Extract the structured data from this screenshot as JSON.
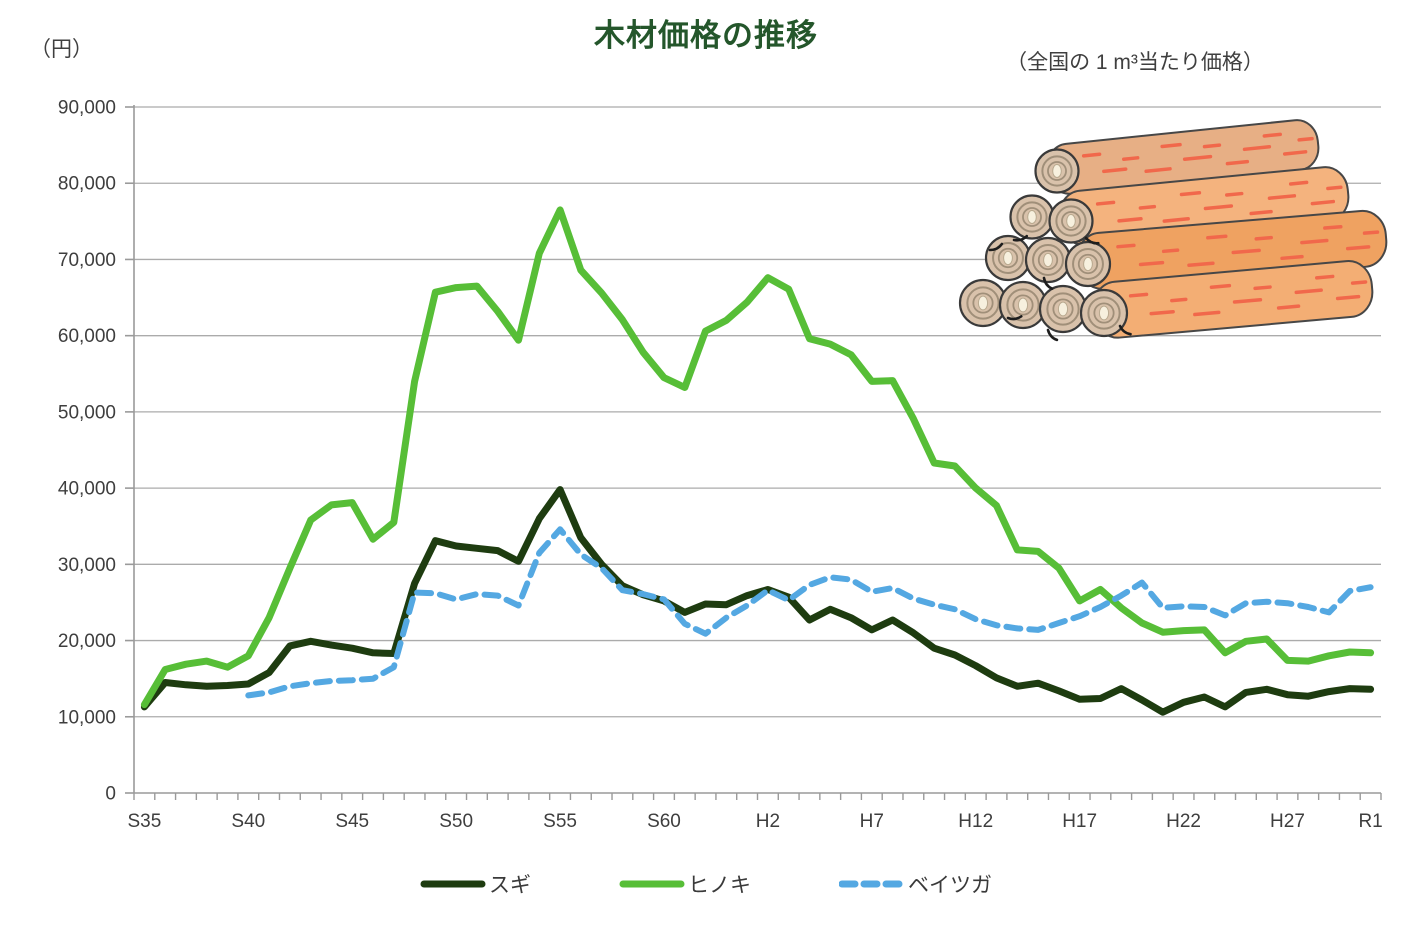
{
  "title": "木材価格の推移",
  "subtitle": "（全国の 1 m³当たり価格）",
  "y_axis": {
    "unit_label": "（円）",
    "tick_labels": [
      "0",
      "10,000",
      "20,000",
      "30,000",
      "40,000",
      "50,000",
      "60,000",
      "70,000",
      "80,000",
      "90,000"
    ]
  },
  "x_axis": {
    "labeled_ticks": [
      {
        "index": 0,
        "label": "S35"
      },
      {
        "index": 5,
        "label": "S40"
      },
      {
        "index": 10,
        "label": "S45"
      },
      {
        "index": 15,
        "label": "S50"
      },
      {
        "index": 20,
        "label": "S55"
      },
      {
        "index": 25,
        "label": "S60"
      },
      {
        "index": 30,
        "label": "H2"
      },
      {
        "index": 35,
        "label": "H7"
      },
      {
        "index": 40,
        "label": "H12"
      },
      {
        "index": 45,
        "label": "H17"
      },
      {
        "index": 50,
        "label": "H22"
      },
      {
        "index": 55,
        "label": "H27"
      },
      {
        "index": 59,
        "label": "R1"
      }
    ]
  },
  "legend": {
    "items": [
      "スギ",
      "ヒノキ",
      "ベイツガ"
    ]
  },
  "illustration": {
    "label": "log-pile-clipart"
  },
  "colors": {
    "title": "#24562B",
    "text": "#3E3E3E",
    "gridline": "#ABABAB",
    "axis": "#9A9A9A",
    "sugi": "#1E3C10",
    "hinoki": "#57BE37",
    "beituga": "#54A8E2"
  },
  "chart_data": {
    "type": "line",
    "title": "木材価格の推移",
    "subtitle": "（全国の 1 m³当たり価格）",
    "ylabel": "円",
    "ylim": [
      0,
      90000
    ],
    "y_step": 10000,
    "grid": true,
    "legend_position": "bottom",
    "x_categories": [
      "S35",
      "S36",
      "S37",
      "S38",
      "S39",
      "S40",
      "S41",
      "S42",
      "S43",
      "S44",
      "S45",
      "S46",
      "S47",
      "S48",
      "S49",
      "S50",
      "S51",
      "S52",
      "S53",
      "S54",
      "S55",
      "S56",
      "S57",
      "S58",
      "S59",
      "S60",
      "S61",
      "S62",
      "S63",
      "H1",
      "H2",
      "H3",
      "H4",
      "H5",
      "H6",
      "H7",
      "H8",
      "H9",
      "H10",
      "H11",
      "H12",
      "H13",
      "H14",
      "H15",
      "H16",
      "H17",
      "H18",
      "H19",
      "H20",
      "H21",
      "H22",
      "H23",
      "H24",
      "H25",
      "H26",
      "H27",
      "H28",
      "H29",
      "H30",
      "R1"
    ],
    "series": [
      {
        "name": "スギ",
        "color": "#1E3C10",
        "style": "solid",
        "width": 7,
        "values": [
          11300,
          14500,
          14200,
          14000,
          14100,
          14300,
          15800,
          19300,
          19900,
          19400,
          19000,
          18400,
          18300,
          27500,
          33100,
          32400,
          32100,
          31800,
          30400,
          36000,
          39800,
          33500,
          30000,
          27200,
          26000,
          25200,
          23700,
          24800,
          24700,
          25900,
          26700,
          25700,
          22700,
          24100,
          23000,
          21400,
          22700,
          21000,
          19000,
          18100,
          16700,
          15100,
          14000,
          14400,
          13400,
          12300,
          12400,
          13700,
          12200,
          10600,
          11900,
          12600,
          11300,
          13200,
          13600,
          12900,
          12700,
          13300,
          13700,
          13600
        ]
      },
      {
        "name": "ヒノキ",
        "color": "#57BE37",
        "style": "solid",
        "width": 7,
        "values": [
          11600,
          16200,
          16900,
          17300,
          16500,
          18000,
          23000,
          29500,
          35800,
          37800,
          38100,
          33300,
          35500,
          54000,
          65700,
          66300,
          66500,
          63200,
          59400,
          70800,
          76500,
          68600,
          65600,
          62100,
          57800,
          54500,
          53200,
          60600,
          62000,
          64400,
          67600,
          66100,
          59600,
          58900,
          57500,
          54000,
          54100,
          49100,
          43300,
          42900,
          40000,
          37700,
          31900,
          31700,
          29500,
          25200,
          26700,
          24300,
          22300,
          21100,
          21300,
          21400,
          18400,
          19900,
          20200,
          17400,
          17300,
          18000,
          18500,
          18400
        ]
      },
      {
        "name": "ベイツガ",
        "color": "#54A8E2",
        "style": "dashed",
        "width": 6,
        "values": [
          null,
          null,
          null,
          null,
          null,
          12800,
          13200,
          14000,
          14400,
          14700,
          14800,
          15000,
          16500,
          26300,
          26200,
          25400,
          26100,
          25900,
          24600,
          31500,
          34600,
          31300,
          29500,
          26600,
          26100,
          25400,
          22200,
          20900,
          23000,
          24600,
          26600,
          25300,
          27300,
          28300,
          28000,
          26400,
          26900,
          25500,
          24700,
          24100,
          22800,
          22000,
          21600,
          21400,
          22300,
          23200,
          24400,
          25900,
          27600,
          24300,
          24500,
          24400,
          23300,
          24900,
          25100,
          24900,
          24400,
          23700,
          26500,
          27000
        ]
      }
    ]
  }
}
